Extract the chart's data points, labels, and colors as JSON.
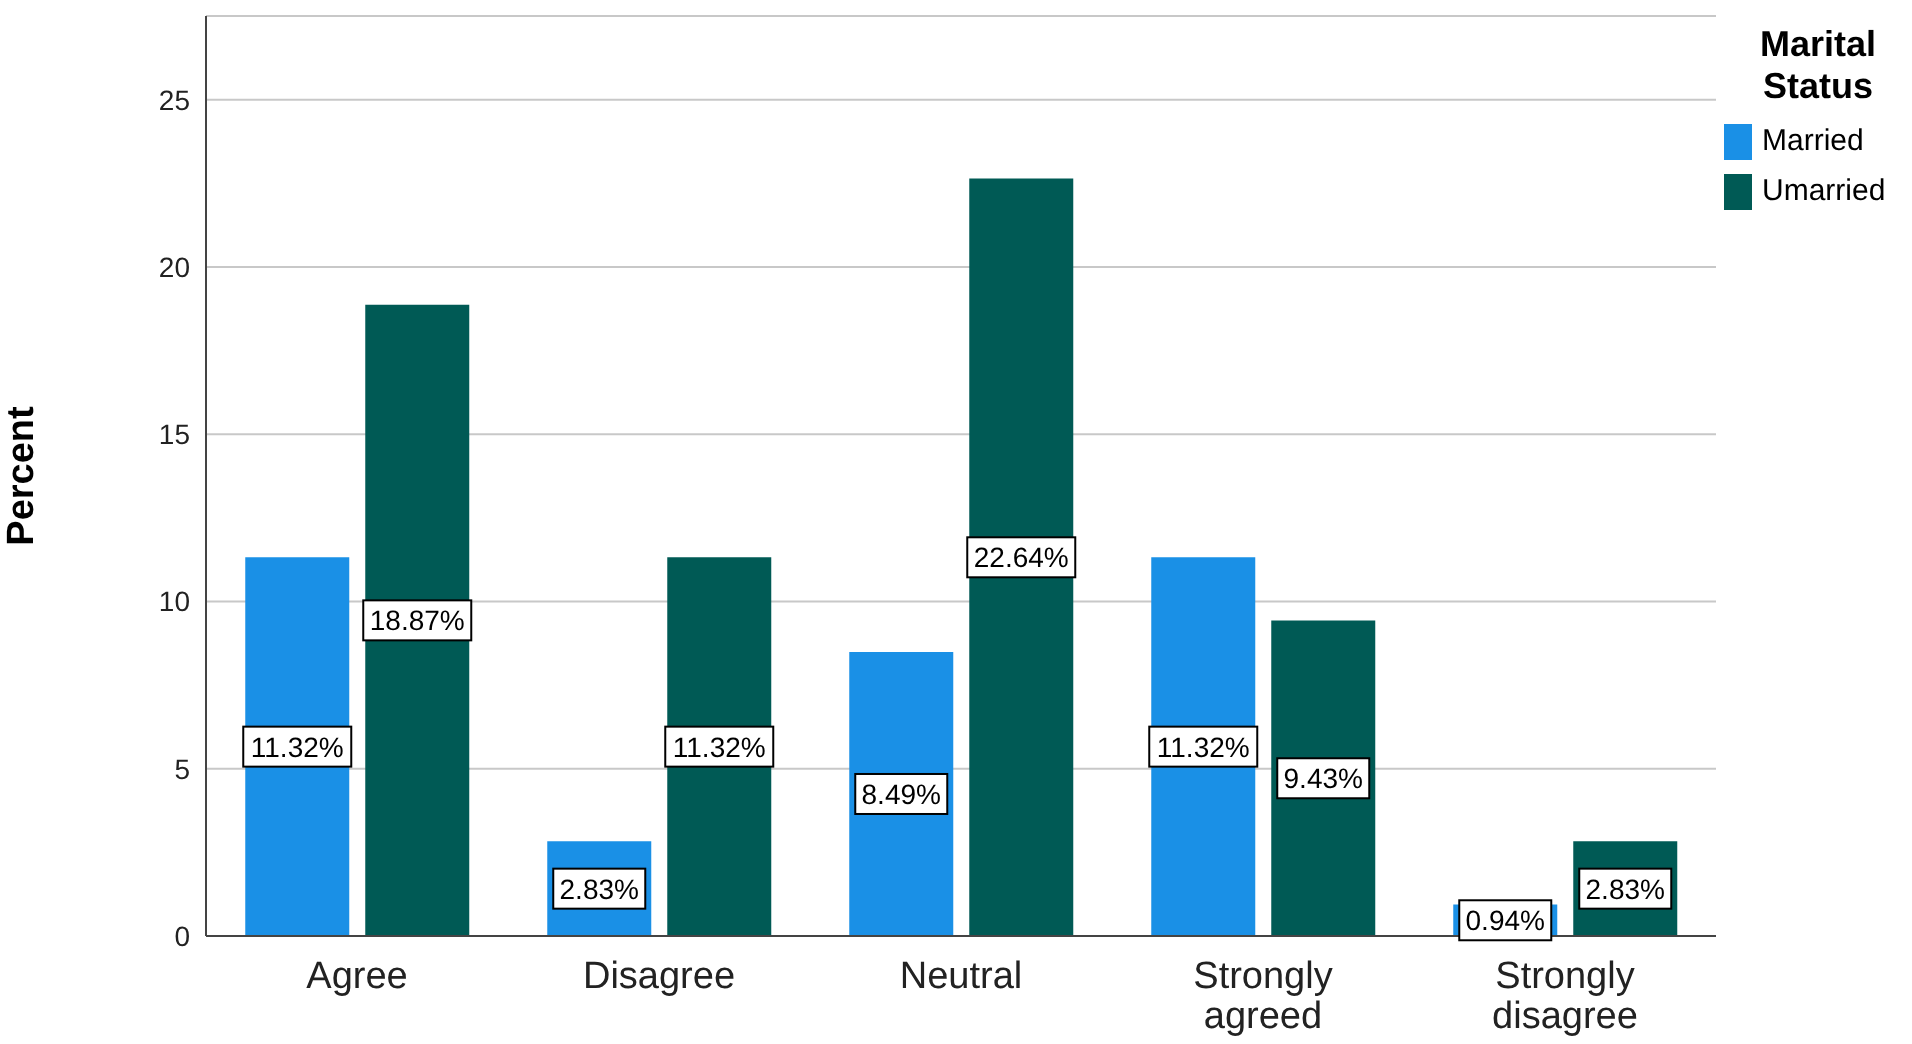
{
  "chart_data": {
    "type": "bar",
    "ylabel": "Percent",
    "legend_title": "Marital Status",
    "categories": [
      "Agree",
      "Disagree",
      "Neutral",
      "Strongly agreed",
      "Strongly disagree"
    ],
    "series": [
      {
        "name": "Married",
        "color": "#1a90e6",
        "values": [
          11.32,
          2.83,
          8.49,
          11.32,
          0.94
        ],
        "value_labels": [
          "11.32%",
          "2.83%",
          "8.49%",
          "11.32%",
          "0.94%"
        ]
      },
      {
        "name": "Umarried",
        "color": "#005a55",
        "values": [
          18.87,
          11.32,
          22.64,
          9.43,
          2.83
        ],
        "value_labels": [
          "18.87%",
          "11.32%",
          "22.64%",
          "9.43%",
          "2.83%"
        ]
      }
    ],
    "ylim": [
      0,
      27.5
    ],
    "yticks": [
      0,
      5,
      10,
      15,
      20,
      25
    ],
    "grid": "y",
    "legend": "top right"
  }
}
